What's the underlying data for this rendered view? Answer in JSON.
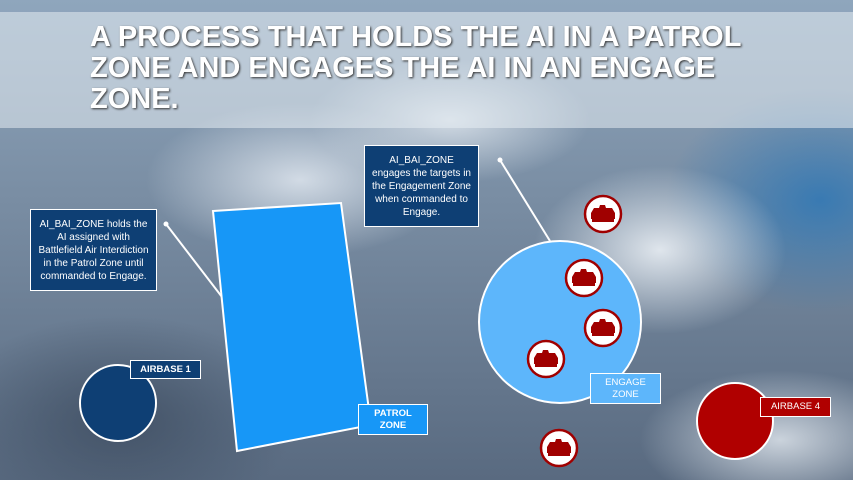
{
  "title": "A PROCESS THAT HOLDS THE AI IN A PATROL ZONE AND ENGAGES THE AI IN AN ENGAGE ZONE.",
  "callouts": {
    "patrol": "AI_BAI_ZONE holds the AI assigned with Battlefield Air Interdiction in the Patrol Zone until commanded to Engage.",
    "engage": "AI_BAI_ZONE engages the targets in the Engagement Zone when commanded to Engage."
  },
  "labels": {
    "patrol_zone": "PATROL ZONE",
    "engage_zone": "ENGAGE ZONE",
    "airbase1": "AIRBASE 1",
    "airbase4": "AIRBASE 4"
  },
  "colors": {
    "patrol": "#1797f7",
    "engage": "#5db6fb",
    "airbase1": "#0e3f74",
    "airbase4": "#b00000",
    "target": "#a00000"
  },
  "icons": [
    "tank-icon",
    "tank-icon",
    "tank-icon",
    "tank-icon",
    "tank-icon"
  ]
}
